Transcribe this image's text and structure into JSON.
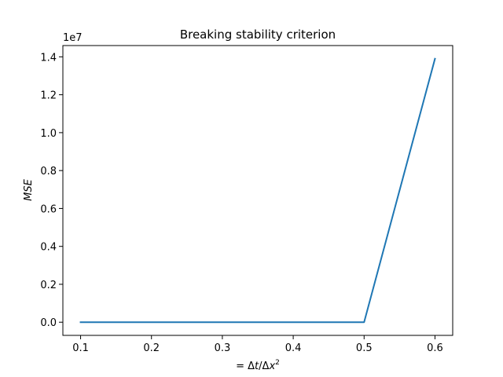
{
  "chart_data": {
    "type": "line",
    "title": "Breaking stability criterion",
    "xlabel_prefix": "= Δ",
    "xlabel_t": "t",
    "xlabel_mid": "/Δ",
    "xlabel_x": "x",
    "xlabel_exp": "2",
    "ylabel": "MSE",
    "y_offset_label": "1e7",
    "x": [
      0.1,
      0.2,
      0.3,
      0.4,
      0.5,
      0.6
    ],
    "series": [
      {
        "values": [
          0,
          0,
          0,
          0,
          0,
          13900000
        ],
        "color": "#1f77b4"
      }
    ],
    "xlim": [
      0.075,
      0.625
    ],
    "ylim": [
      -695000,
      14595000
    ],
    "x_ticks": [
      0.1,
      0.2,
      0.3,
      0.4,
      0.5,
      0.6
    ],
    "x_tick_labels": [
      "0.1",
      "0.2",
      "0.3",
      "0.4",
      "0.5",
      "0.6"
    ],
    "y_ticks": [
      0,
      2000000,
      4000000,
      6000000,
      8000000,
      10000000,
      12000000,
      14000000
    ],
    "y_tick_labels": [
      "0.0",
      "0.2",
      "0.4",
      "0.6",
      "0.8",
      "1.0",
      "1.2",
      "1.4"
    ],
    "grid": false,
    "legend": "none"
  }
}
